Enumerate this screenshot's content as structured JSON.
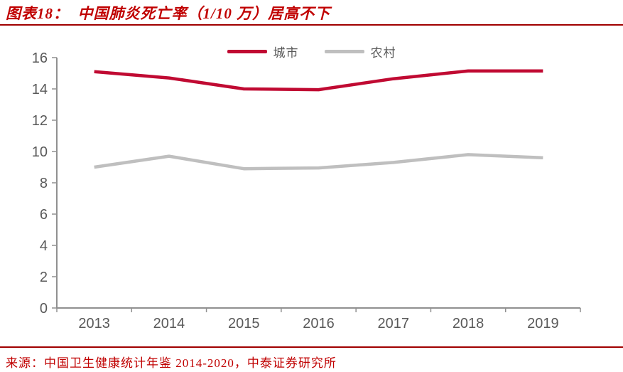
{
  "header": {
    "title": "图表18：  中国肺炎死亡率（1/10 万）居高不下"
  },
  "footer": {
    "source": "来源：中国卫生健康统计年鉴 2014-2020，中泰证券研究所"
  },
  "colors": {
    "title_red": "#C00000",
    "rule_red": "#A00000",
    "axis_gray": "#909090",
    "label_gray": "#595959",
    "urban_red": "#C00A32",
    "rural_gray": "#BFBFBF"
  },
  "chart_data": {
    "type": "line",
    "title": "中国肺炎死亡率（1/10 万）居高不下",
    "categories": [
      "2013",
      "2014",
      "2015",
      "2016",
      "2017",
      "2018",
      "2019"
    ],
    "series": [
      {
        "name": "城市",
        "color": "#C00A32",
        "values": [
          15.1,
          14.7,
          14.0,
          13.95,
          14.65,
          15.15,
          15.15
        ]
      },
      {
        "name": "农村",
        "color": "#BFBFBF",
        "values": [
          9.0,
          9.7,
          8.9,
          8.95,
          9.3,
          9.8,
          9.6
        ]
      }
    ],
    "xlabel": "",
    "ylabel": "",
    "ylim": [
      0,
      16
    ],
    "ytick_step": 2,
    "grid": false,
    "legend_position": "top-center"
  }
}
